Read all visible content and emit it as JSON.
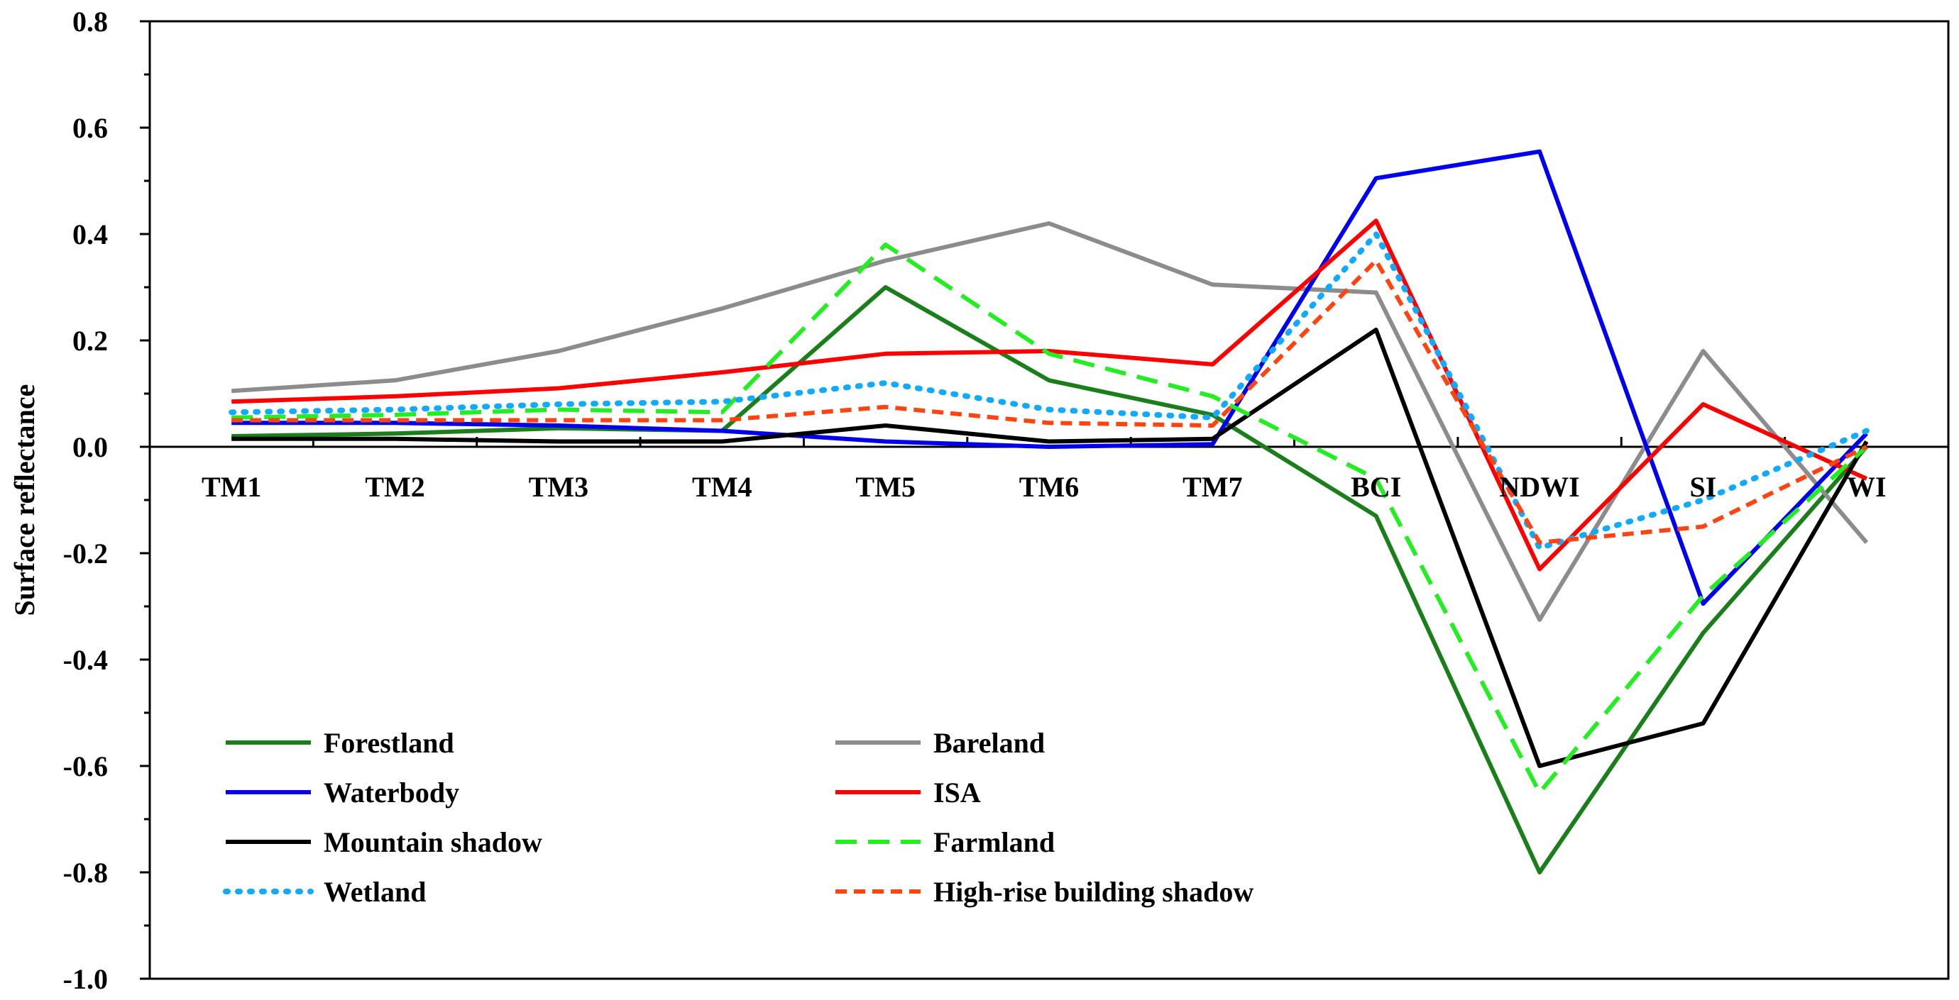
{
  "chart_data": {
    "type": "line",
    "title": "",
    "xlabel": "",
    "ylabel": "Surface reflectance",
    "ylim": [
      -1.0,
      0.8
    ],
    "ytick_step": 0.2,
    "yticks": [
      "0.8",
      "0.6",
      "0.4",
      "0.2",
      "0.0",
      "-0.2",
      "-0.4",
      "-0.6",
      "-0.8",
      "-1.0"
    ],
    "categories": [
      "TM1",
      "TM2",
      "TM3",
      "TM4",
      "TM5",
      "TM6",
      "TM7",
      "BCI",
      "NDWI",
      "SI",
      "WI"
    ],
    "legend_position": "bottom-left",
    "series": [
      {
        "name": "Forestland",
        "color": "#1a7f1a",
        "dash": "solid",
        "values": [
          0.02,
          0.025,
          0.035,
          0.03,
          0.3,
          0.125,
          0.06,
          -0.13,
          -0.8,
          -0.35,
          0.0
        ]
      },
      {
        "name": "Bareland",
        "color": "#8c8c8c",
        "dash": "solid",
        "values": [
          0.105,
          0.125,
          0.18,
          0.26,
          0.35,
          0.42,
          0.305,
          0.29,
          -0.325,
          0.18,
          -0.18
        ]
      },
      {
        "name": "Waterbody",
        "color": "#0000ee",
        "dash": "solid",
        "values": [
          0.045,
          0.045,
          0.04,
          0.03,
          0.01,
          0.0,
          0.005,
          0.505,
          0.555,
          -0.295,
          0.025
        ]
      },
      {
        "name": "ISA",
        "color": "#ff0000",
        "dash": "solid",
        "values": [
          0.085,
          0.095,
          0.11,
          0.14,
          0.175,
          0.18,
          0.155,
          0.425,
          -0.23,
          0.08,
          -0.06
        ]
      },
      {
        "name": "Mountain shadow",
        "color": "#000000",
        "dash": "solid",
        "values": [
          0.015,
          0.015,
          0.01,
          0.01,
          0.04,
          0.01,
          0.015,
          0.22,
          -0.6,
          -0.52,
          0.01
        ]
      },
      {
        "name": "Farmland",
        "color": "#22ee22",
        "dash": "dashed",
        "values": [
          0.055,
          0.06,
          0.07,
          0.065,
          0.38,
          0.175,
          0.095,
          -0.06,
          -0.65,
          -0.28,
          0.0
        ]
      },
      {
        "name": "Wetland",
        "color": "#11aaff",
        "dash": "dotted",
        "values": [
          0.065,
          0.07,
          0.08,
          0.085,
          0.12,
          0.07,
          0.055,
          0.4,
          -0.19,
          -0.1,
          0.03
        ]
      },
      {
        "name": "High-rise building shadow",
        "color": "#ff4411",
        "dash": "short-dashed",
        "values": [
          0.05,
          0.05,
          0.05,
          0.05,
          0.075,
          0.045,
          0.04,
          0.35,
          -0.18,
          -0.15,
          0.0
        ]
      }
    ]
  }
}
